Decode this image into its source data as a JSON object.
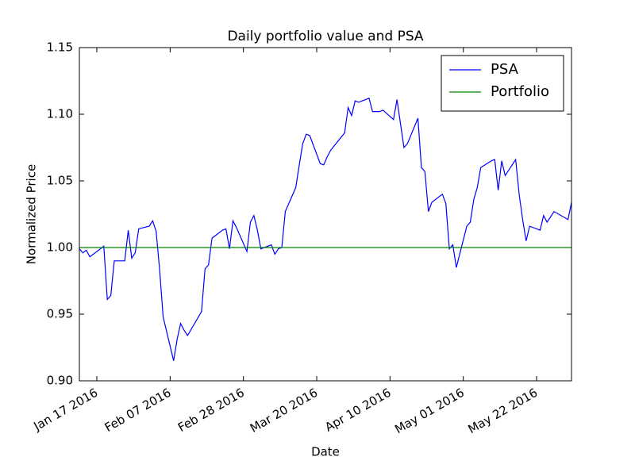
{
  "chart_data": {
    "type": "line",
    "title": "Daily portfolio value and PSA",
    "xlabel": "Date",
    "ylabel": "Normalized Price",
    "x": [
      "2016-01-12",
      "2016-01-13",
      "2016-01-14",
      "2016-01-15",
      "2016-01-19",
      "2016-01-20",
      "2016-01-21",
      "2016-01-22",
      "2016-01-25",
      "2016-01-26",
      "2016-01-27",
      "2016-01-28",
      "2016-01-29",
      "2016-02-01",
      "2016-02-02",
      "2016-02-03",
      "2016-02-04",
      "2016-02-05",
      "2016-02-08",
      "2016-02-09",
      "2016-02-10",
      "2016-02-11",
      "2016-02-12",
      "2016-02-16",
      "2016-02-17",
      "2016-02-18",
      "2016-02-19",
      "2016-02-22",
      "2016-02-23",
      "2016-02-24",
      "2016-02-25",
      "2016-02-26",
      "2016-02-29",
      "2016-03-01",
      "2016-03-02",
      "2016-03-03",
      "2016-03-04",
      "2016-03-07",
      "2016-03-08",
      "2016-03-09",
      "2016-03-10",
      "2016-03-11",
      "2016-03-14",
      "2016-03-15",
      "2016-03-16",
      "2016-03-17",
      "2016-03-18",
      "2016-03-21",
      "2016-03-22",
      "2016-03-23",
      "2016-03-24",
      "2016-03-28",
      "2016-03-29",
      "2016-03-30",
      "2016-03-31",
      "2016-04-01",
      "2016-04-04",
      "2016-04-05",
      "2016-04-06",
      "2016-04-07",
      "2016-04-08",
      "2016-04-11",
      "2016-04-12",
      "2016-04-13",
      "2016-04-14",
      "2016-04-15",
      "2016-04-18",
      "2016-04-19",
      "2016-04-20",
      "2016-04-21",
      "2016-04-22",
      "2016-04-25",
      "2016-04-26",
      "2016-04-27",
      "2016-04-28",
      "2016-04-29",
      "2016-05-02",
      "2016-05-03",
      "2016-05-04",
      "2016-05-05",
      "2016-05-06",
      "2016-05-09",
      "2016-05-10",
      "2016-05-11",
      "2016-05-12",
      "2016-05-13",
      "2016-05-16",
      "2016-05-17",
      "2016-05-18",
      "2016-05-19",
      "2016-05-20",
      "2016-05-23",
      "2016-05-24",
      "2016-05-25",
      "2016-05-26",
      "2016-05-27",
      "2016-05-31",
      "2016-06-01"
    ],
    "series": [
      {
        "name": "PSA",
        "color": "#0000ff",
        "values": [
          0.999,
          0.996,
          0.998,
          0.993,
          1.001,
          0.961,
          0.964,
          0.99,
          0.99,
          1.013,
          0.992,
          0.996,
          1.014,
          1.016,
          1.02,
          1.012,
          0.983,
          0.948,
          0.915,
          0.931,
          0.943,
          0.938,
          0.934,
          0.952,
          0.984,
          0.987,
          1.007,
          1.013,
          1.014,
          0.999,
          1.02,
          1.015,
          0.997,
          1.019,
          1.024,
          1.013,
          0.999,
          1.002,
          0.995,
          0.999,
          1.0,
          1.027,
          1.045,
          1.062,
          1.078,
          1.085,
          1.084,
          1.063,
          1.062,
          1.068,
          1.073,
          1.086,
          1.105,
          1.099,
          1.11,
          1.109,
          1.112,
          1.102,
          1.102,
          1.102,
          1.103,
          1.096,
          1.111,
          1.093,
          1.075,
          1.078,
          1.097,
          1.06,
          1.057,
          1.027,
          1.034,
          1.04,
          1.033,
          0.999,
          1.002,
          0.985,
          1.016,
          1.019,
          1.036,
          1.045,
          1.06,
          1.065,
          1.066,
          1.043,
          1.065,
          1.054,
          1.066,
          1.04,
          1.021,
          1.005,
          1.016,
          1.013,
          1.024,
          1.019,
          1.023,
          1.027,
          1.021,
          1.034
        ]
      },
      {
        "name": "Portfolio",
        "color": "#008000",
        "values": [
          1,
          1,
          1,
          1,
          1,
          1,
          1,
          1,
          1,
          1,
          1,
          1,
          1,
          1,
          1,
          1,
          1,
          1,
          1,
          1,
          1,
          1,
          1,
          1,
          1,
          1,
          1,
          1,
          1,
          1,
          1,
          1,
          1,
          1,
          1,
          1,
          1,
          1,
          1,
          1,
          1,
          1,
          1,
          1,
          1,
          1,
          1,
          1,
          1,
          1,
          1,
          1,
          1,
          1,
          1,
          1,
          1,
          1,
          1,
          1,
          1,
          1,
          1,
          1,
          1,
          1,
          1,
          1,
          1,
          1,
          1,
          1,
          1,
          1,
          1,
          1,
          1,
          1,
          1,
          1,
          1,
          1,
          1,
          1,
          1,
          1,
          1,
          1,
          1,
          1,
          1,
          1,
          1,
          1,
          1,
          1,
          1,
          1
        ]
      }
    ],
    "xlim": [
      "2016-01-12",
      "2016-06-01"
    ],
    "xticks": [
      {
        "value": "2016-01-17",
        "label": "Jan 17 2016"
      },
      {
        "value": "2016-02-07",
        "label": "Feb 07 2016"
      },
      {
        "value": "2016-02-28",
        "label": "Feb 28 2016"
      },
      {
        "value": "2016-03-20",
        "label": "Mar 20 2016"
      },
      {
        "value": "2016-04-10",
        "label": "Apr 10 2016"
      },
      {
        "value": "2016-05-01",
        "label": "May 01 2016"
      },
      {
        "value": "2016-05-22",
        "label": "May 22 2016"
      }
    ],
    "ylim": [
      0.9,
      1.15
    ],
    "yticks": [
      {
        "value": 0.9,
        "label": "0.90"
      },
      0.95,
      {
        "value": 1.0,
        "label": "1.00"
      },
      1.05,
      {
        "value": 1.1,
        "label": "1.10"
      },
      1.15
    ],
    "legend": "upper right"
  }
}
